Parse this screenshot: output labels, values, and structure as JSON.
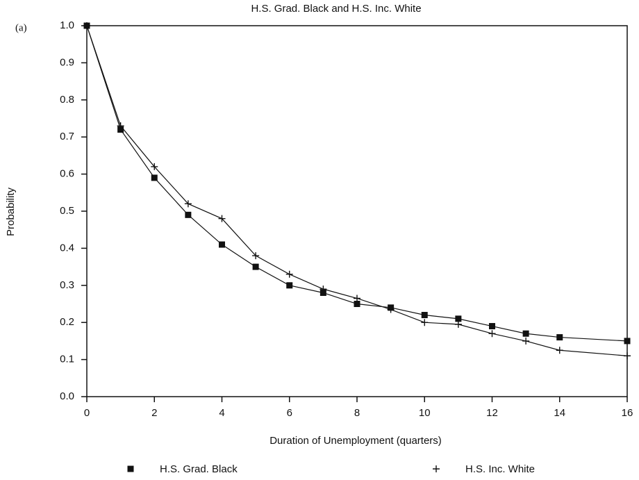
{
  "chart_data": {
    "type": "line",
    "panel_label": "(a)",
    "title": "H.S. Grad. Black and H.S. Inc. White",
    "x_label": "Duration of Unemployment (quarters)",
    "y_label": "Probability",
    "xlim": [
      0,
      16
    ],
    "xticks": [
      0,
      2,
      4,
      6,
      8,
      10,
      12,
      14,
      16
    ],
    "ylim": [
      0,
      1
    ],
    "yticks": [
      {
        "value": 0,
        "label": "0.0"
      },
      0.1,
      0.2,
      0.3,
      0.4,
      0.5,
      0.6,
      0.7,
      0.8,
      0.9,
      {
        "value": 1,
        "label": "1.0"
      }
    ],
    "series": [
      {
        "name": "H.S. Grad. Black",
        "color": "#111111",
        "marker": "square",
        "x": [
          0,
          1,
          2,
          3,
          4,
          5,
          6,
          7,
          8,
          9,
          10,
          11,
          12,
          13,
          14,
          16
        ],
        "values": [
          1.0,
          0.72,
          0.59,
          0.49,
          0.41,
          0.35,
          0.3,
          0.28,
          0.25,
          0.24,
          0.22,
          0.21,
          0.19,
          0.17,
          0.16,
          0.15
        ]
      },
      {
        "name": "H.S. Inc. White",
        "color": "#111111",
        "marker": "plus",
        "x": [
          0,
          1,
          2,
          3,
          4,
          5,
          6,
          7,
          8,
          9,
          10,
          11,
          12,
          13,
          14,
          16
        ],
        "values": [
          1.0,
          0.73,
          0.62,
          0.52,
          0.48,
          0.38,
          0.33,
          0.29,
          0.265,
          0.235,
          0.2,
          0.195,
          0.17,
          0.15,
          0.125,
          0.11
        ]
      }
    ]
  }
}
